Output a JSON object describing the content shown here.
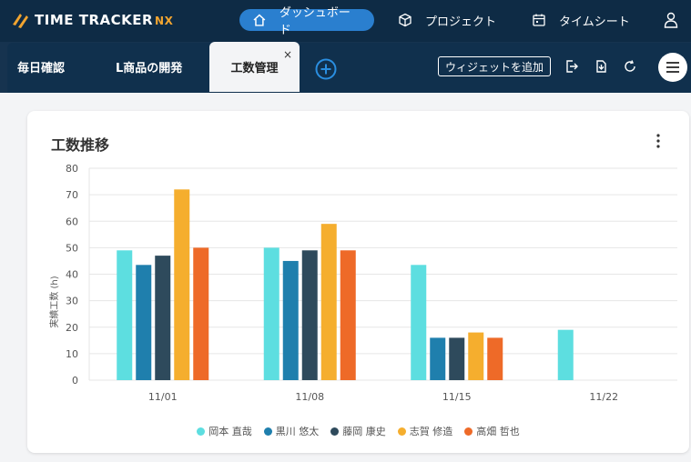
{
  "app": {
    "logo_text": "TIME TRACKER",
    "logo_suffix": "NX"
  },
  "nav": {
    "dashboard": "ダッシュボード",
    "project": "プロジェクト",
    "timesheet": "タイムシート"
  },
  "tabs": [
    {
      "label": "毎日確認"
    },
    {
      "label": "L商品の開発"
    },
    {
      "label": "工数管理"
    }
  ],
  "toolbar": {
    "add_widget_label": "ウィジェットを追加",
    "close_symbol": "×"
  },
  "widget": {
    "title": "工数推移"
  },
  "colors": {
    "header_bg": "#0e2b45",
    "accent": "#2a7fcf",
    "logo_accent": "#f2a530"
  },
  "chart_data": {
    "type": "bar",
    "title": "工数推移",
    "ylabel": "実績工数 (h)",
    "xlabel": "",
    "ylim": [
      0,
      80
    ],
    "yticks": [
      0,
      10,
      20,
      30,
      40,
      50,
      60,
      70,
      80
    ],
    "categories": [
      "11/01",
      "11/08",
      "11/15",
      "11/22"
    ],
    "grid": true,
    "legend_position": "bottom",
    "series": [
      {
        "name": "岡本 直哉",
        "color": "#5ddee0",
        "values": [
          49,
          50,
          43.5,
          19
        ]
      },
      {
        "name": "黒川 悠太",
        "color": "#1f7fad",
        "values": [
          43.5,
          45,
          16,
          null
        ]
      },
      {
        "name": "藤岡 康史",
        "color": "#2e4a5c",
        "values": [
          47,
          49,
          16,
          null
        ]
      },
      {
        "name": "志賀 修造",
        "color": "#f5ae2e",
        "values": [
          72,
          59,
          18,
          null
        ]
      },
      {
        "name": "高畑 哲也",
        "color": "#ee6a28",
        "values": [
          50,
          49,
          16,
          null
        ]
      }
    ]
  }
}
